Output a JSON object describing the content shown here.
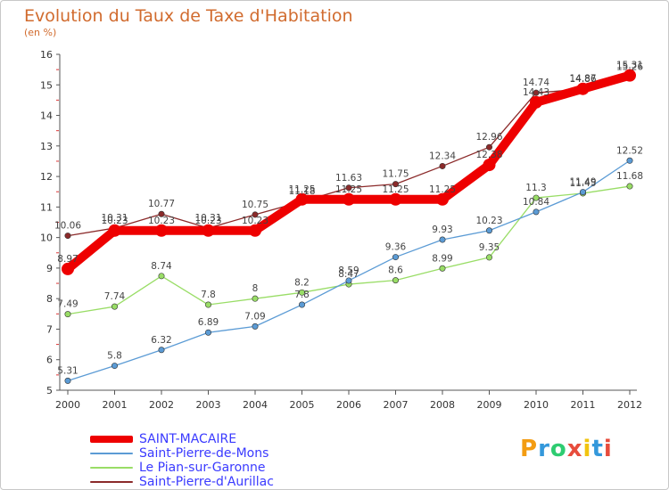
{
  "header": {
    "title": "Evolution du Taux de Taxe d'Habitation",
    "subtitle": "(en %)"
  },
  "logo": {
    "letters": [
      "P",
      "r",
      "o",
      "x",
      "i",
      "t",
      "i"
    ],
    "colors": [
      "#f39c12",
      "#3498db",
      "#2ecc71",
      "#e74c3c",
      "#f1c40f",
      "#3498db",
      "#e74c3c"
    ]
  },
  "chart_data": {
    "type": "line",
    "x": [
      "2000",
      "2001",
      "2002",
      "2003",
      "2004",
      "2005",
      "2006",
      "2007",
      "2008",
      "2009",
      "2010",
      "2011",
      "2012"
    ],
    "ylim": [
      5,
      16
    ],
    "yticks": [
      "5",
      "6",
      "7",
      "8",
      "9",
      "10",
      "11",
      "12",
      "13",
      "14",
      "15",
      "16"
    ],
    "grid": false,
    "legend_position": "bottom-left",
    "series": [
      {
        "name": "SAINT-MACAIRE",
        "color": "#ee0000",
        "values": [
          8.97,
          10.23,
          10.23,
          10.23,
          10.23,
          11.25,
          11.25,
          11.25,
          11.25,
          12.38,
          14.43,
          14.87,
          15.31
        ],
        "labels": [
          "8.97",
          "10.23",
          "10.23",
          "10.23",
          "10.23",
          "11.25",
          "11.25",
          "11.25",
          "11.25",
          "12.38",
          "14.43",
          "14.87",
          "15.31"
        ]
      },
      {
        "name": "Saint-Pierre-de-Mons",
        "color": "#5b9bd5",
        "values": [
          5.31,
          5.8,
          6.32,
          6.89,
          7.09,
          7.8,
          8.59,
          9.36,
          9.93,
          10.23,
          10.84,
          11.49,
          12.52
        ],
        "labels": [
          "5.31",
          "5.8",
          "6.32",
          "6.89",
          "7.09",
          "7.8",
          "8.59",
          "9.36",
          "9.93",
          "10.23",
          "10.84",
          "11.49",
          "12.52"
        ]
      },
      {
        "name": "Le Pian-sur-Garonne",
        "color": "#99dd66",
        "values": [
          7.49,
          7.74,
          8.74,
          7.8,
          8,
          8.2,
          8.47,
          8.6,
          8.99,
          9.35,
          11.3,
          11.45,
          11.68
        ],
        "labels": [
          "7.49",
          "7.74",
          "8.74",
          "7.8",
          "8",
          "8.2",
          "8.47",
          "8.6",
          "8.99",
          "9.35",
          "11.3",
          "11.45",
          "11.68"
        ]
      },
      {
        "name": "Saint-Pierre-d'Aurillac",
        "color": "#8b2a2a",
        "values": [
          10.06,
          10.31,
          10.77,
          10.31,
          10.75,
          11.18,
          11.63,
          11.75,
          12.34,
          12.96,
          14.74,
          14.86,
          15.26
        ],
        "labels": [
          "10.06",
          "10.31",
          "10.77",
          "10.31",
          "10.75",
          "11.18",
          "11.63",
          "11.75",
          "12.34",
          "12.96",
          "14.74",
          "14.86",
          "15.26"
        ]
      }
    ]
  }
}
